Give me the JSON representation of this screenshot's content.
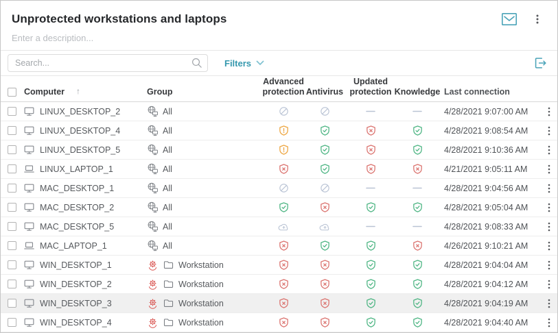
{
  "colors": {
    "accent": "#4aa3b8",
    "accent_light": "#82c3d2",
    "ok": "#4db583",
    "error": "#db736f",
    "warning": "#eda53f",
    "muted": "#b9c3d4",
    "threat": "#d9534f",
    "device_gray": "#85898f",
    "group_gray": "#7a7e83"
  },
  "header": {
    "title": "Unprotected workstations and laptops",
    "description_placeholder": "Enter a description...",
    "icons": [
      "envelope-icon",
      "kebab-menu-icon"
    ]
  },
  "toolbar": {
    "search_placeholder": "Search...",
    "filters_label": "Filters",
    "export_icon": "export-icon"
  },
  "status_icon_names": {
    "ok": "shield-check-icon",
    "error": "shield-x-icon",
    "warning": "shield-exclamation-icon",
    "disabled": "slashed-circle-icon",
    "none": "dash-icon",
    "installing": "cloud-install-icon"
  },
  "table": {
    "columns": {
      "computer": "Computer",
      "group": "Group",
      "advanced_protection": "Advanced protection",
      "antivirus": "Antivirus",
      "updated_protection": "Updated protection",
      "knowledge": "Knowledge",
      "last_connection": "Last connection"
    },
    "sort": {
      "column": "computer",
      "direction": "asc",
      "glyph": "↑"
    },
    "rows": [
      {
        "computer": "LINUX_DESKTOP_2",
        "device": "desktop",
        "threat": false,
        "group_icon": "all-group",
        "group": "All",
        "advanced_protection": "disabled",
        "antivirus": "disabled",
        "updated_protection": "none",
        "knowledge": "none",
        "last_connection": "4/28/2021 9:07:00 AM",
        "highlighted": false
      },
      {
        "computer": "LINUX_DESKTOP_4",
        "device": "desktop",
        "threat": false,
        "group_icon": "all-group",
        "group": "All",
        "advanced_protection": "warning",
        "antivirus": "ok",
        "updated_protection": "error",
        "knowledge": "ok",
        "last_connection": "4/28/2021 9:08:54 AM",
        "highlighted": false
      },
      {
        "computer": "LINUX_DESKTOP_5",
        "device": "desktop",
        "threat": false,
        "group_icon": "all-group",
        "group": "All",
        "advanced_protection": "warning",
        "antivirus": "ok",
        "updated_protection": "error",
        "knowledge": "ok",
        "last_connection": "4/28/2021 9:10:36 AM",
        "highlighted": false
      },
      {
        "computer": "LINUX_LAPTOP_1",
        "device": "laptop",
        "threat": false,
        "group_icon": "all-group",
        "group": "All",
        "advanced_protection": "error",
        "antivirus": "ok",
        "updated_protection": "error",
        "knowledge": "error",
        "last_connection": "4/21/2021 9:05:11 AM",
        "highlighted": false
      },
      {
        "computer": "MAC_DESKTOP_1",
        "device": "desktop",
        "threat": false,
        "group_icon": "all-group",
        "group": "All",
        "advanced_protection": "disabled",
        "antivirus": "disabled",
        "updated_protection": "none",
        "knowledge": "none",
        "last_connection": "4/28/2021 9:04:56 AM",
        "highlighted": false
      },
      {
        "computer": "MAC_DESKTOP_2",
        "device": "desktop",
        "threat": false,
        "group_icon": "all-group",
        "group": "All",
        "advanced_protection": "ok",
        "antivirus": "error",
        "updated_protection": "ok",
        "knowledge": "ok",
        "last_connection": "4/28/2021 9:05:04 AM",
        "highlighted": false
      },
      {
        "computer": "MAC_DESKTOP_5",
        "device": "desktop",
        "threat": false,
        "group_icon": "all-group",
        "group": "All",
        "advanced_protection": "installing",
        "antivirus": "installing",
        "updated_protection": "none",
        "knowledge": "none",
        "last_connection": "4/28/2021 9:08:33 AM",
        "highlighted": false
      },
      {
        "computer": "MAC_LAPTOP_1",
        "device": "laptop",
        "threat": false,
        "group_icon": "all-group",
        "group": "All",
        "advanced_protection": "error",
        "antivirus": "ok",
        "updated_protection": "ok",
        "knowledge": "error",
        "last_connection": "4/26/2021 9:10:21 AM",
        "highlighted": false
      },
      {
        "computer": "WIN_DESKTOP_1",
        "device": "desktop",
        "threat": true,
        "group_icon": "folder",
        "group": "Workstation",
        "advanced_protection": "error",
        "antivirus": "error",
        "updated_protection": "ok",
        "knowledge": "ok",
        "last_connection": "4/28/2021 9:04:04 AM",
        "highlighted": false
      },
      {
        "computer": "WIN_DESKTOP_2",
        "device": "desktop",
        "threat": true,
        "group_icon": "folder",
        "group": "Workstation",
        "advanced_protection": "error",
        "antivirus": "error",
        "updated_protection": "ok",
        "knowledge": "ok",
        "last_connection": "4/28/2021 9:04:12 AM",
        "highlighted": false
      },
      {
        "computer": "WIN_DESKTOP_3",
        "device": "desktop",
        "threat": true,
        "group_icon": "folder",
        "group": "Workstation",
        "advanced_protection": "error",
        "antivirus": "error",
        "updated_protection": "ok",
        "knowledge": "ok",
        "last_connection": "4/28/2021 9:04:19 AM",
        "highlighted": true
      },
      {
        "computer": "WIN_DESKTOP_4",
        "device": "desktop",
        "threat": true,
        "group_icon": "folder",
        "group": "Workstation",
        "advanced_protection": "error",
        "antivirus": "error",
        "updated_protection": "ok",
        "knowledge": "ok",
        "last_connection": "4/28/2021 9:04:40 AM",
        "highlighted": false
      }
    ]
  }
}
